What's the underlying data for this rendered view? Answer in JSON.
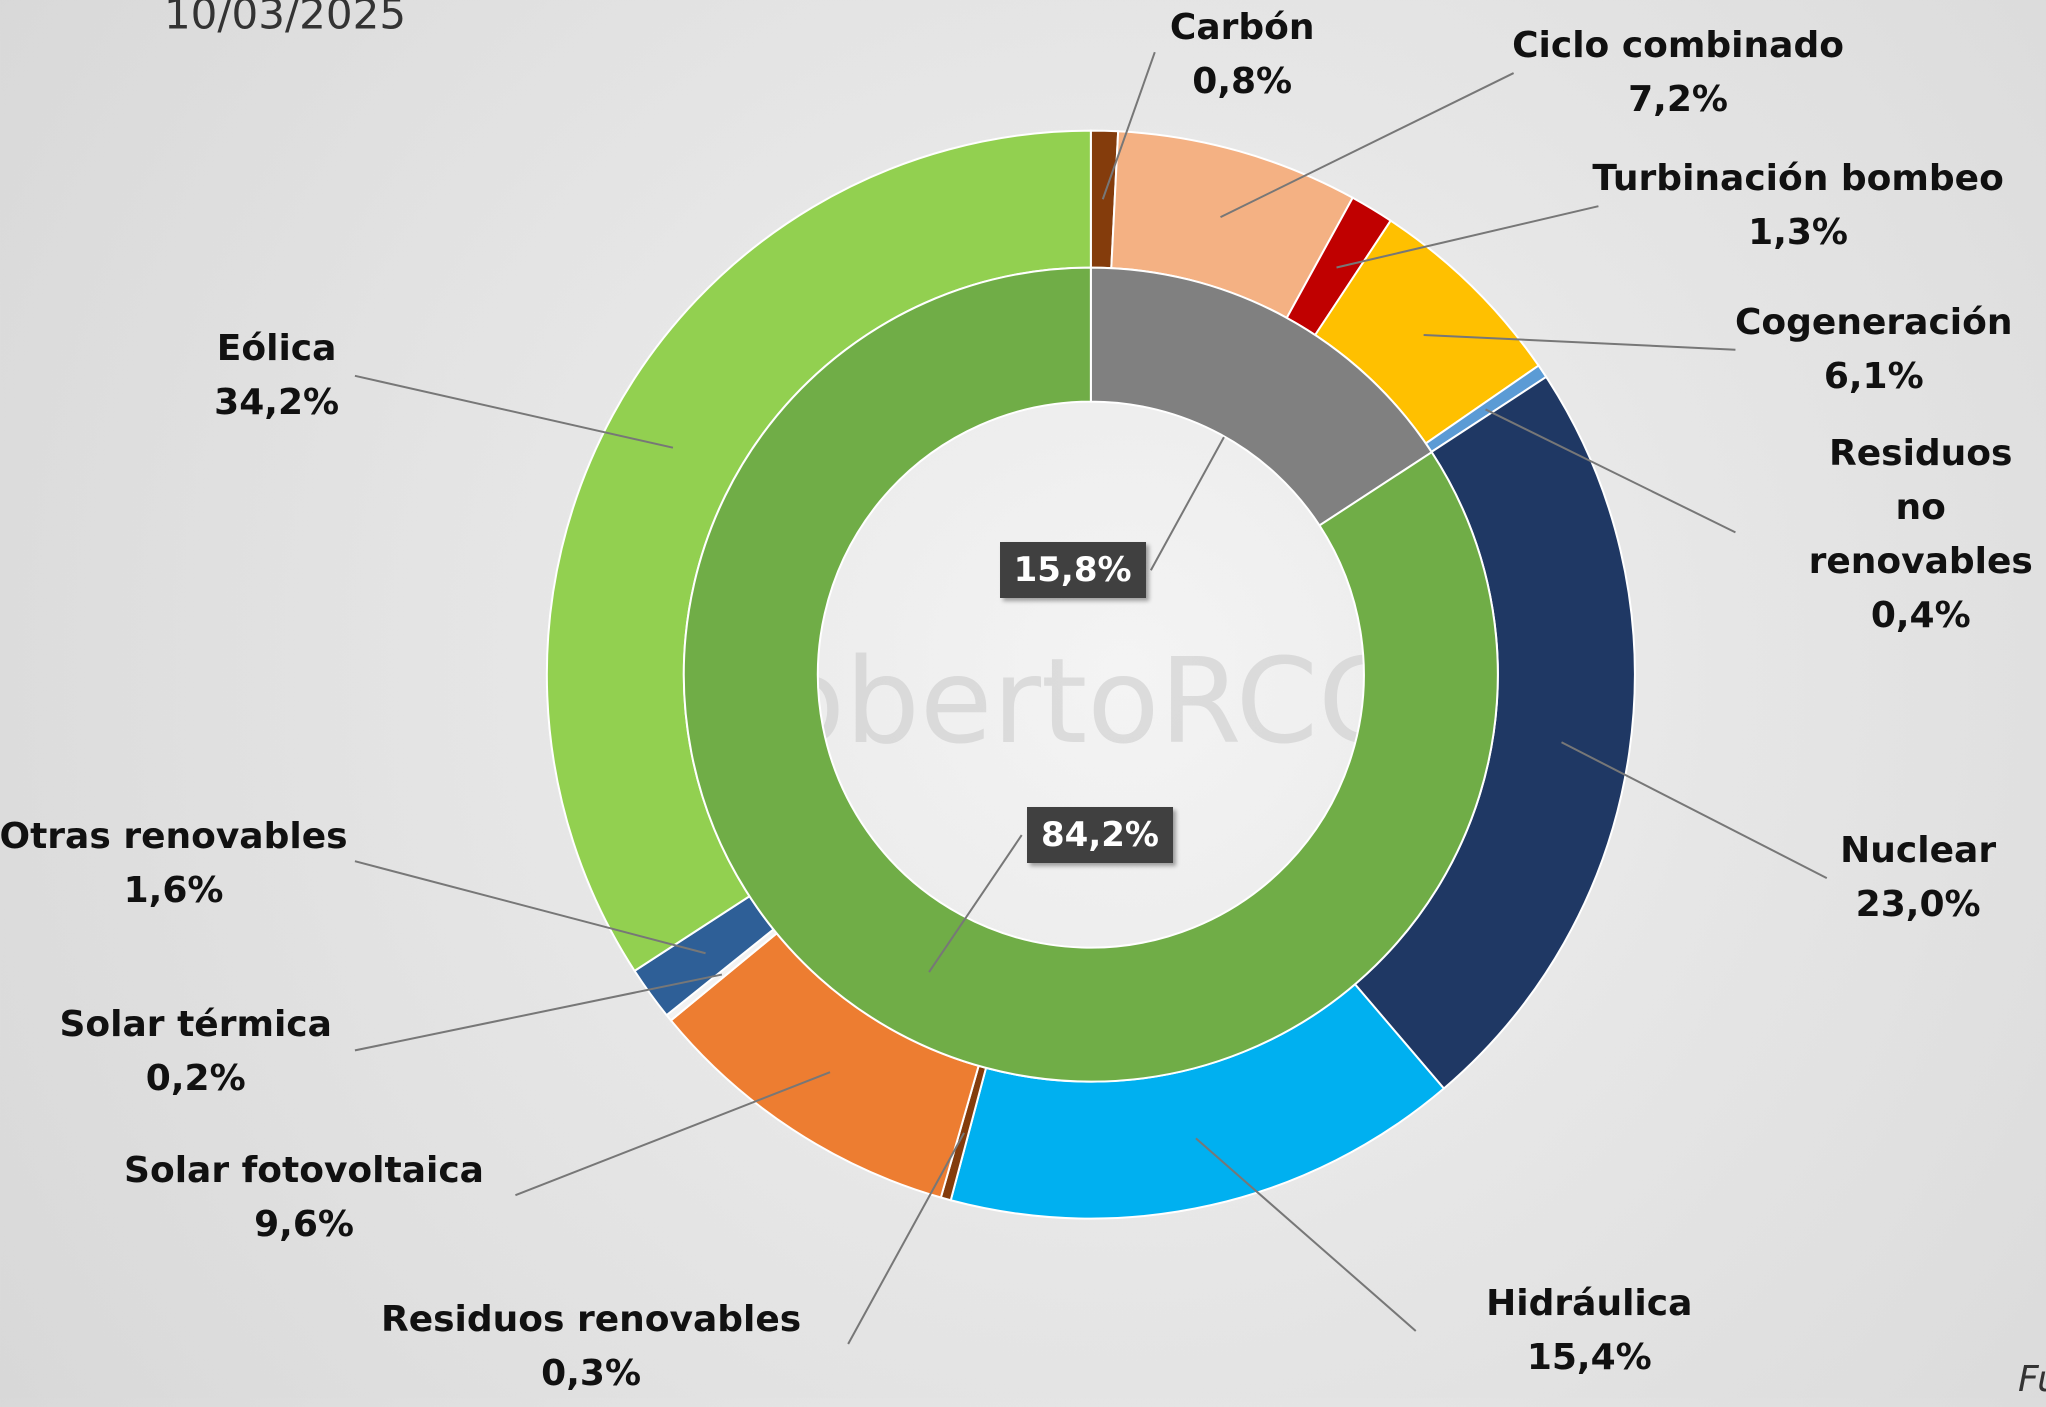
{
  "chart_data": {
    "type": "donut",
    "subtitle": "10/03/2025",
    "watermark": "@RobertoRCGING",
    "source": "Fuen",
    "categories": [
      "Carbón",
      "Ciclo combinado",
      "Turbinación bombeo",
      "Cogeneración",
      "Residuos no renovables",
      "Nuclear",
      "Hidráulica",
      "Residuos renovables",
      "Solar fotovoltaica",
      "Solar térmica",
      "Otras renovables",
      "Eólica"
    ],
    "values": [
      0.8,
      7.2,
      1.3,
      6.1,
      0.4,
      23.0,
      15.4,
      0.3,
      9.6,
      0.2,
      1.6,
      34.2
    ],
    "value_labels": [
      "0,8%",
      "7,2%",
      "1,3%",
      "6,1%",
      "0,4%",
      "23,0%",
      "15,4%",
      "0,3%",
      "9,6%",
      "0,2%",
      "1,6%",
      "34,2%"
    ],
    "colors": [
      "#843c0c",
      "#f4b183",
      "#c00000",
      "#ffc000",
      "#5b9bd5",
      "#1f3864",
      "#00b0f0",
      "#843c0c",
      "#ed7d31",
      "#f2f2f2",
      "#2e5f97",
      "#92d050"
    ],
    "inner": {
      "values": [
        15.8,
        84.2
      ],
      "value_labels": [
        "15,8%",
        "84,2%"
      ],
      "colors": [
        "#808080",
        "#70ad47"
      ]
    }
  }
}
